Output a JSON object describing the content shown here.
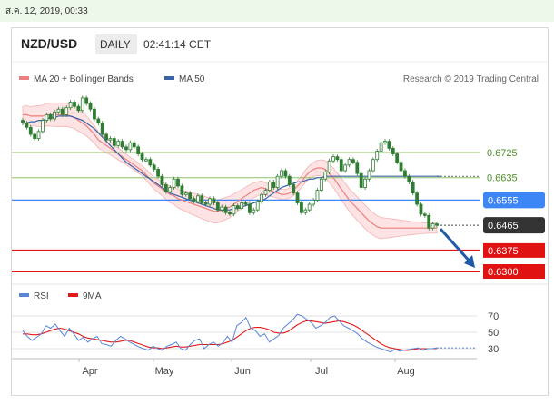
{
  "timestamp": "ส.ค. 12, 2019, 00:33",
  "header": {
    "symbol": "NZD/USD",
    "timeframe": "DAILY",
    "time": "02:41:14 CET"
  },
  "credit": "Research © 2019 Trading Central",
  "colors": {
    "bollinger_fill": "#fde3e3",
    "bollinger_edge": "#f3b3b3",
    "ma20": "#ec8080",
    "ma50": "#3a63a8",
    "candle": "#2f7d32",
    "resistance": "#8dc26a",
    "pivot": "#3d86f5",
    "support": "#e11212",
    "arrow": "#1f5aa8",
    "rsi": "#5a86d6",
    "rsi_ma": "#e21a1a",
    "price_tag": "#333333"
  },
  "chart_data": [
    {
      "type": "candlestick",
      "legend": [
        {
          "label": "MA 20 + Bollinger Bands",
          "color": "#ec8080"
        },
        {
          "label": "MA 50",
          "color": "#3a63a8"
        }
      ],
      "x_ticks": [
        "Apr",
        "May",
        "Jun",
        "Jul",
        "Aug"
      ],
      "levels": [
        {
          "value": 0.6725,
          "label": "0.6725",
          "kind": "resistance"
        },
        {
          "value": 0.6635,
          "label": "0.6635",
          "kind": "resistance"
        },
        {
          "value": 0.6555,
          "label": "0.6555",
          "kind": "pivot"
        },
        {
          "value": 0.6465,
          "label": "0.6465",
          "kind": "last"
        },
        {
          "value": 0.6375,
          "label": "0.6375",
          "kind": "support"
        },
        {
          "value": 0.63,
          "label": "0.6300",
          "kind": "support"
        }
      ],
      "close": [
        0.683,
        0.6815,
        0.679,
        0.6775,
        0.68,
        0.684,
        0.686,
        0.6845,
        0.687,
        0.688,
        0.686,
        0.6885,
        0.6905,
        0.689,
        0.6875,
        0.692,
        0.69,
        0.688,
        0.6845,
        0.683,
        0.679,
        0.677,
        0.6775,
        0.675,
        0.6765,
        0.6745,
        0.6735,
        0.676,
        0.6745,
        0.672,
        0.67,
        0.67,
        0.668,
        0.6665,
        0.664,
        0.661,
        0.6585,
        0.66,
        0.663,
        0.6605,
        0.6575,
        0.658,
        0.656,
        0.655,
        0.657,
        0.6545,
        0.654,
        0.656,
        0.6545,
        0.652,
        0.653,
        0.651,
        0.6505,
        0.6535,
        0.6525,
        0.6545,
        0.654,
        0.651,
        0.652,
        0.655,
        0.6575,
        0.659,
        0.662,
        0.66,
        0.664,
        0.666,
        0.664,
        0.661,
        0.658,
        0.6545,
        0.651,
        0.652,
        0.654,
        0.6555,
        0.659,
        0.663,
        0.6655,
        0.6695,
        0.671,
        0.67,
        0.666,
        0.668,
        0.67,
        0.669,
        0.665,
        0.66,
        0.663,
        0.666,
        0.67,
        0.673,
        0.676,
        0.6765,
        0.674,
        0.672,
        0.669,
        0.666,
        0.664,
        0.662,
        0.658,
        0.654,
        0.6505,
        0.65,
        0.6455,
        0.647,
        0.6465
      ],
      "ma20": [
        0.686,
        0.686,
        0.6855,
        0.6855,
        0.6855,
        0.6855,
        0.686,
        0.686,
        0.686,
        0.686,
        0.686,
        0.686,
        0.6855,
        0.685,
        0.684,
        0.683,
        0.682,
        0.6805,
        0.679,
        0.677,
        0.676,
        0.675,
        0.674,
        0.673,
        0.672,
        0.671,
        0.67,
        0.669,
        0.668,
        0.667,
        0.666,
        0.6645,
        0.663,
        0.6615,
        0.6605,
        0.6595,
        0.6585,
        0.6575,
        0.657,
        0.656,
        0.6555,
        0.655,
        0.6545,
        0.654,
        0.6535,
        0.653,
        0.6525,
        0.652,
        0.6515,
        0.6515,
        0.652,
        0.6525,
        0.653,
        0.654,
        0.655,
        0.656,
        0.657,
        0.658,
        0.659,
        0.6595,
        0.66,
        0.6595,
        0.659,
        0.6585,
        0.658,
        0.6575,
        0.6575,
        0.658,
        0.659,
        0.6605,
        0.662,
        0.664,
        0.6655,
        0.6665,
        0.667,
        0.667,
        0.6665,
        0.665,
        0.6635,
        0.6615,
        0.6595,
        0.6575,
        0.6555,
        0.654,
        0.6525,
        0.651,
        0.6495,
        0.648,
        0.647,
        0.646,
        0.6455,
        0.6455,
        0.6455,
        0.6455,
        0.6455,
        0.6455,
        0.6455,
        0.6455,
        0.6455,
        0.6455,
        0.6455,
        0.6455,
        0.6455,
        0.6455,
        0.6455
      ],
      "ma50": [
        0.683,
        0.683,
        0.6835,
        0.6835,
        0.684,
        0.684,
        0.6845,
        0.685,
        0.685,
        0.6855,
        0.6855,
        0.6855,
        0.6855,
        0.685,
        0.6845,
        0.684,
        0.683,
        0.682,
        0.681,
        0.6795,
        0.678,
        0.6765,
        0.675,
        0.6735,
        0.672,
        0.6705,
        0.669,
        0.668,
        0.667,
        0.666,
        0.665,
        0.664,
        0.663,
        0.662,
        0.661,
        0.66,
        0.659,
        0.658,
        0.6575,
        0.657,
        0.6565,
        0.656,
        0.6555,
        0.655,
        0.6545,
        0.654,
        0.6535,
        0.653,
        0.6525,
        0.652,
        0.652,
        0.652,
        0.652,
        0.6525,
        0.6525,
        0.653,
        0.6535,
        0.654,
        0.6545,
        0.655,
        0.6555,
        0.656,
        0.657,
        0.658,
        0.659,
        0.66,
        0.6605,
        0.661,
        0.6615,
        0.662,
        0.662,
        0.6625,
        0.663,
        0.663,
        0.6635,
        0.6635,
        0.664,
        0.664,
        0.664,
        0.664,
        0.664,
        0.664,
        0.664,
        0.664,
        0.664,
        0.664,
        0.664,
        0.664,
        0.664,
        0.664,
        0.664,
        0.664,
        0.664,
        0.664,
        0.664,
        0.664,
        0.664,
        0.664,
        0.664,
        0.664,
        0.664,
        0.664,
        0.664,
        0.664,
        0.664,
        0.664
      ],
      "forecast": {
        "from": 0.6465,
        "to": 0.63
      }
    },
    {
      "type": "line",
      "legend": [
        {
          "label": "RSI",
          "color": "#5a86d6"
        },
        {
          "label": "9MA",
          "color": "#e21a1a"
        }
      ],
      "y_ticks": [
        70,
        50,
        30
      ],
      "ylim": [
        20,
        80
      ],
      "rsi": [
        52,
        45,
        40,
        44,
        48,
        58,
        55,
        60,
        52,
        45,
        55,
        48,
        40,
        44,
        38,
        42,
        45,
        36,
        35,
        33,
        40,
        45,
        42,
        38,
        35,
        32,
        30,
        28,
        33,
        30,
        28,
        33,
        35,
        38,
        30,
        28,
        35,
        40,
        42,
        30,
        35,
        38,
        33,
        37,
        45,
        38,
        58,
        62,
        68,
        55,
        52,
        45,
        48,
        38,
        42,
        46,
        55,
        60,
        65,
        72,
        70,
        66,
        62,
        55,
        58,
        62,
        68,
        70,
        64,
        58,
        55,
        52,
        48,
        42,
        38,
        35,
        32,
        30,
        28,
        26,
        29,
        27,
        28,
        29,
        30,
        31,
        28,
        30,
        30,
        31
      ],
      "ma": [
        48,
        48,
        47,
        47,
        48,
        50,
        52,
        54,
        55,
        54,
        52,
        50,
        48,
        45,
        43,
        42,
        41,
        40,
        39,
        38,
        38,
        39,
        40,
        40,
        38,
        36,
        34,
        32,
        31,
        31,
        30,
        31,
        32,
        33,
        32,
        32,
        33,
        34,
        35,
        35,
        35,
        35,
        35,
        36,
        38,
        40,
        44,
        48,
        52,
        55,
        56,
        56,
        55,
        53,
        50,
        49,
        49,
        51,
        55,
        59,
        62,
        64,
        64,
        63,
        62,
        61,
        62,
        63,
        64,
        63,
        61,
        59,
        56,
        52,
        48,
        44,
        40,
        36,
        33,
        31,
        30,
        29,
        28,
        28,
        29,
        30,
        30,
        30,
        30,
        30
      ]
    }
  ]
}
